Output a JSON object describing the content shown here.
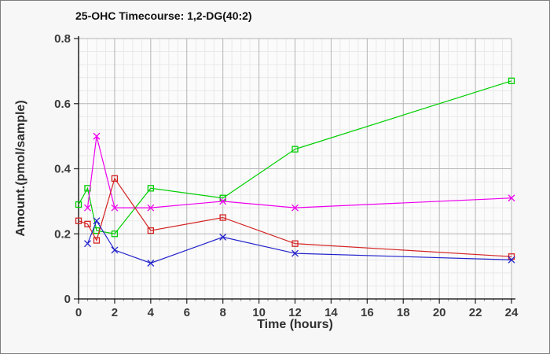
{
  "chart_data": {
    "type": "line",
    "title": "25-OHC Timecourse: 1,2-DG(40:2)",
    "xlabel": "Time (hours)",
    "ylabel": "Amount.(pmol/sample)",
    "xlim": [
      0,
      24
    ],
    "ylim": [
      0,
      0.8
    ],
    "x_ticks": [
      0,
      2,
      4,
      6,
      8,
      10,
      12,
      14,
      16,
      18,
      20,
      22,
      24
    ],
    "y_ticks": [
      0,
      0.2,
      0.4,
      0.6,
      0.8
    ],
    "x_minor_step": 0.5,
    "y_minor_step": 0.04,
    "grid": "major-and-minor",
    "legend": "none",
    "colors": {
      "major_grid": "#b5b5b5",
      "minor_grid": "#e9e9e9",
      "axis": "#000000",
      "tick_label": "#3a3a3a",
      "plot_bg": "#fbfbfb"
    },
    "series": [
      {
        "name": "green-square",
        "color": "#00cf00",
        "marker": "square",
        "x": [
          0,
          0.5,
          1,
          2,
          4,
          8,
          12,
          24
        ],
        "y": [
          0.29,
          0.34,
          0.21,
          0.2,
          0.34,
          0.31,
          0.46,
          0.67
        ]
      },
      {
        "name": "magenta-x",
        "color": "#ee00ee",
        "marker": "x",
        "x": [
          0.5,
          1,
          2,
          4,
          8,
          12,
          24
        ],
        "y": [
          0.28,
          0.5,
          0.28,
          0.28,
          0.3,
          0.28,
          0.31
        ]
      },
      {
        "name": "red-square",
        "color": "#d42222",
        "marker": "square",
        "x": [
          0,
          0.5,
          1,
          2,
          4,
          8,
          12,
          24
        ],
        "y": [
          0.24,
          0.23,
          0.18,
          0.37,
          0.21,
          0.25,
          0.17,
          0.13
        ]
      },
      {
        "name": "blue-x",
        "color": "#2222cc",
        "marker": "x",
        "x": [
          0.5,
          1,
          2,
          4,
          8,
          12,
          24
        ],
        "y": [
          0.17,
          0.24,
          0.15,
          0.11,
          0.19,
          0.14,
          0.12
        ]
      }
    ]
  }
}
